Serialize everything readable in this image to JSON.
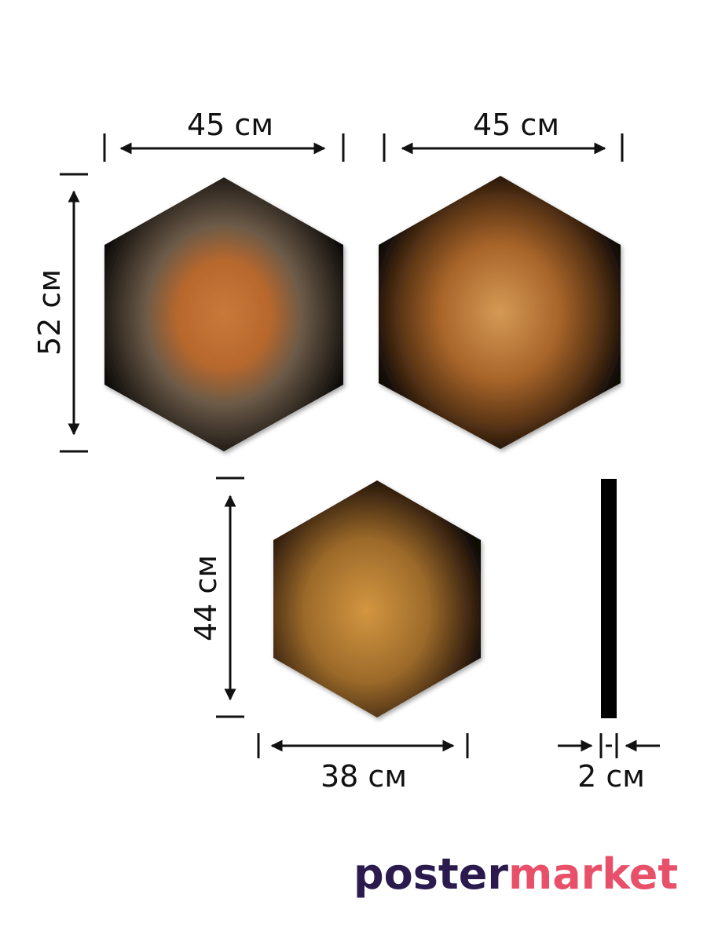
{
  "dimensions": {
    "tiger_width": "45 см",
    "lion_width": "45 см",
    "large_height": "52 см",
    "small_height": "44 см",
    "small_width": "38 см",
    "depth": "2 см"
  },
  "brand": {
    "first": "poster",
    "second": "market"
  }
}
